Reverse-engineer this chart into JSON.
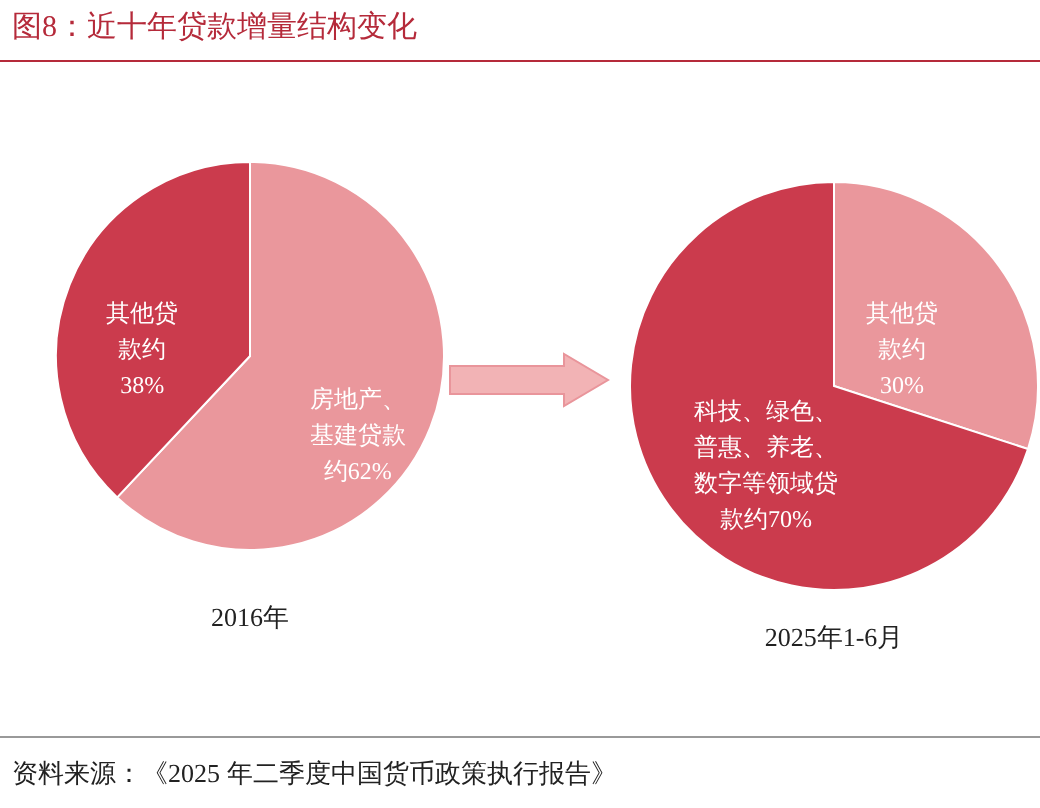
{
  "chart_data": [
    {
      "type": "pie",
      "title": "2016年",
      "annotations": [
        "图8：近十年贷款增量结构变化"
      ],
      "categories": [
        "房地产、基建贷款约",
        "其他贷款约"
      ],
      "values": [
        62,
        38
      ],
      "value_labels": [
        "62%",
        "38%"
      ],
      "colors": [
        "#ea979c",
        "#cb3b4d"
      ]
    },
    {
      "type": "pie",
      "title": "2025年1-6月",
      "annotations": [
        "资料来源：《2025 年二季度中国货币政策执行报告》"
      ],
      "categories": [
        "其他贷款约",
        "科技、绿色、普惠、养老、数字等领域贷款约"
      ],
      "values": [
        30,
        70
      ],
      "value_labels": [
        "30%",
        "70%"
      ],
      "colors": [
        "#ea979c",
        "#cb3b4d"
      ]
    }
  ]
}
